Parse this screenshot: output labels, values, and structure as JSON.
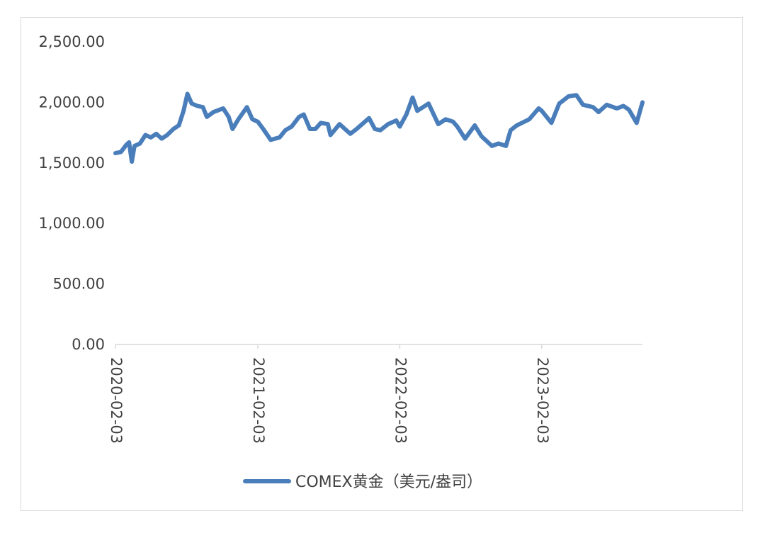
{
  "chart_data": {
    "type": "line",
    "title": "",
    "xlabel": "",
    "ylabel": "",
    "ylim": [
      0,
      2500
    ],
    "y_ticks": [
      "0.00",
      "500.00",
      "1,000.00",
      "1,500.00",
      "2,000.00",
      "2,500.00"
    ],
    "x_ticks": [
      "2020-02-03",
      "2021-02-03",
      "2022-02-03",
      "2023-02-03"
    ],
    "x_range": [
      "2020-02-03",
      "2023-10-20"
    ],
    "grid": false,
    "legend": "bottom",
    "series": [
      {
        "name": "COMEX黄金（美元/盎司）",
        "color": "#4a7ebb",
        "points": [
          [
            "2020-02-03",
            1580
          ],
          [
            "2020-02-17",
            1590
          ],
          [
            "2020-03-02",
            1650
          ],
          [
            "2020-03-09",
            1670
          ],
          [
            "2020-03-16",
            1510
          ],
          [
            "2020-03-23",
            1640
          ],
          [
            "2020-04-06",
            1660
          ],
          [
            "2020-04-20",
            1730
          ],
          [
            "2020-05-04",
            1710
          ],
          [
            "2020-05-18",
            1740
          ],
          [
            "2020-06-01",
            1700
          ],
          [
            "2020-06-15",
            1730
          ],
          [
            "2020-07-01",
            1780
          ],
          [
            "2020-07-15",
            1810
          ],
          [
            "2020-07-27",
            1930
          ],
          [
            "2020-08-06",
            2070
          ],
          [
            "2020-08-17",
            1990
          ],
          [
            "2020-09-01",
            1970
          ],
          [
            "2020-09-15",
            1960
          ],
          [
            "2020-09-25",
            1880
          ],
          [
            "2020-10-12",
            1920
          ],
          [
            "2020-11-06",
            1950
          ],
          [
            "2020-11-20",
            1880
          ],
          [
            "2020-11-30",
            1780
          ],
          [
            "2020-12-15",
            1860
          ],
          [
            "2021-01-06",
            1960
          ],
          [
            "2021-01-20",
            1860
          ],
          [
            "2021-02-03",
            1840
          ],
          [
            "2021-02-17",
            1780
          ],
          [
            "2021-03-08",
            1690
          ],
          [
            "2021-03-31",
            1710
          ],
          [
            "2021-04-15",
            1770
          ],
          [
            "2021-05-01",
            1800
          ],
          [
            "2021-05-20",
            1880
          ],
          [
            "2021-06-01",
            1900
          ],
          [
            "2021-06-17",
            1780
          ],
          [
            "2021-07-01",
            1780
          ],
          [
            "2021-07-15",
            1830
          ],
          [
            "2021-08-02",
            1820
          ],
          [
            "2021-08-09",
            1730
          ],
          [
            "2021-09-01",
            1820
          ],
          [
            "2021-09-29",
            1740
          ],
          [
            "2021-10-15",
            1780
          ],
          [
            "2021-11-16",
            1870
          ],
          [
            "2021-12-01",
            1780
          ],
          [
            "2021-12-15",
            1770
          ],
          [
            "2022-01-04",
            1820
          ],
          [
            "2022-01-25",
            1850
          ],
          [
            "2022-02-03",
            1800
          ],
          [
            "2022-02-20",
            1900
          ],
          [
            "2022-03-08",
            2040
          ],
          [
            "2022-03-20",
            1930
          ],
          [
            "2022-04-18",
            1990
          ],
          [
            "2022-05-13",
            1820
          ],
          [
            "2022-06-01",
            1860
          ],
          [
            "2022-06-20",
            1840
          ],
          [
            "2022-07-01",
            1800
          ],
          [
            "2022-07-21",
            1700
          ],
          [
            "2022-08-15",
            1810
          ],
          [
            "2022-09-01",
            1720
          ],
          [
            "2022-09-28",
            1640
          ],
          [
            "2022-10-15",
            1660
          ],
          [
            "2022-11-03",
            1640
          ],
          [
            "2022-11-15",
            1770
          ],
          [
            "2022-12-01",
            1810
          ],
          [
            "2023-01-02",
            1860
          ],
          [
            "2023-01-26",
            1950
          ],
          [
            "2023-02-03",
            1930
          ],
          [
            "2023-02-28",
            1830
          ],
          [
            "2023-03-20",
            1990
          ],
          [
            "2023-04-13",
            2050
          ],
          [
            "2023-05-03",
            2060
          ],
          [
            "2023-05-20",
            1980
          ],
          [
            "2023-06-15",
            1960
          ],
          [
            "2023-06-29",
            1920
          ],
          [
            "2023-07-20",
            1980
          ],
          [
            "2023-08-15",
            1950
          ],
          [
            "2023-09-01",
            1970
          ],
          [
            "2023-09-15",
            1940
          ],
          [
            "2023-10-05",
            1830
          ],
          [
            "2023-10-20",
            2000
          ]
        ]
      }
    ]
  }
}
